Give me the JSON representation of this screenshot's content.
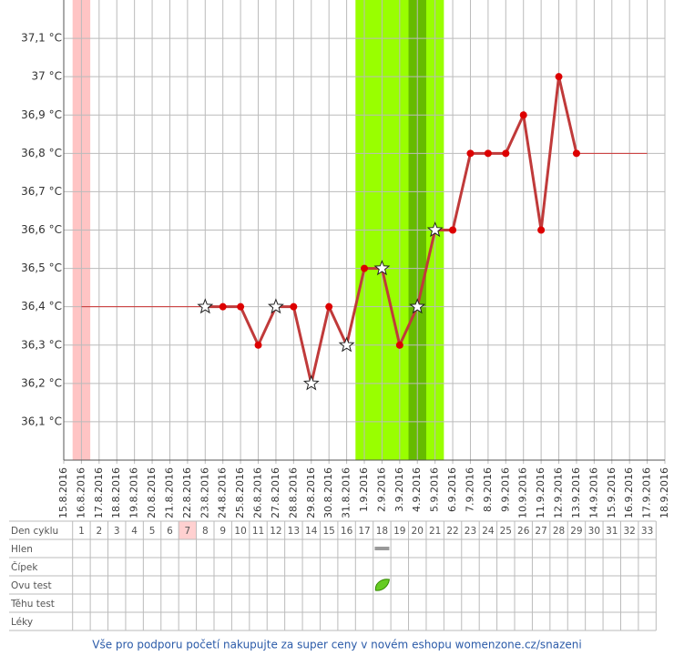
{
  "chart_data": {
    "type": "line",
    "x": [
      "15.8.2016",
      "16.8.2016",
      "17.8.2016",
      "18.8.2016",
      "19.8.2016",
      "20.8.2016",
      "21.8.2016",
      "22.8.2016",
      "23.8.2016",
      "24.8.2016",
      "25.8.2016",
      "26.8.2016",
      "27.8.2016",
      "28.8.2016",
      "29.8.2016",
      "30.8.2016",
      "31.8.2016",
      "1.9.2016",
      "2.9.2016",
      "3.9.2016",
      "4.9.2016",
      "5.9.2016",
      "6.9.2016",
      "7.9.2016",
      "8.9.2016",
      "9.9.2016",
      "10.9.2016",
      "11.9.2016",
      "12.9.2016",
      "13.9.2016",
      "14.9.2016",
      "15.9.2016",
      "16.9.2016",
      "17.9.2016",
      "18.9.2016"
    ],
    "values": [
      null,
      null,
      null,
      null,
      null,
      null,
      null,
      null,
      36.4,
      36.4,
      36.4,
      36.3,
      36.4,
      36.4,
      36.2,
      36.4,
      36.3,
      36.5,
      36.5,
      36.3,
      36.4,
      36.6,
      36.6,
      36.8,
      36.8,
      36.8,
      36.9,
      36.6,
      37.0,
      36.8,
      null,
      null,
      null,
      null,
      null
    ],
    "markers": [
      null,
      null,
      null,
      null,
      null,
      null,
      null,
      null,
      "star",
      "dot",
      "dot",
      "dot",
      "star",
      "dot",
      "star",
      "dot",
      "star",
      "dot",
      "star",
      "dot",
      "star",
      "star",
      "dot",
      "dot",
      "dot",
      "dot",
      "dot",
      "dot",
      "dot",
      "dot",
      null,
      null,
      null,
      null,
      null
    ],
    "color": "#c03a3a",
    "dot_color": "#dd0000",
    "ylim": [
      36.0,
      37.2
    ],
    "yticks": [
      {
        "value": 36.1,
        "label": "36,1 °C"
      },
      {
        "value": 36.2,
        "label": "36,2 °C"
      },
      {
        "value": 36.3,
        "label": "36,3 °C"
      },
      {
        "value": 36.4,
        "label": "36,4 °C"
      },
      {
        "value": 36.5,
        "label": "36,5 °C"
      },
      {
        "value": 36.6,
        "label": "36,6 °C"
      },
      {
        "value": 36.7,
        "label": "36,7 °C"
      },
      {
        "value": 36.8,
        "label": "36,8 °C"
      },
      {
        "value": 36.9,
        "label": "36,9 °C"
      },
      {
        "value": 37.0,
        "label": "37 °C"
      },
      {
        "value": 37.1,
        "label": "37,1 °C"
      }
    ],
    "grid": true,
    "bands": [
      {
        "from": "16.8.2016",
        "to": "16.8.2016",
        "color": "#ffc4c4"
      },
      {
        "from": "1.9.2016",
        "to": "5.9.2016",
        "color": "#99ff00"
      },
      {
        "from": "4.9.2016",
        "to": "4.9.2016",
        "color": "#66bb00"
      }
    ],
    "reference_lines": [
      {
        "value": 36.4,
        "from": "16.8.2016",
        "to": "23.8.2016",
        "color": "#cc3333"
      },
      {
        "value": 36.8,
        "from": "13.9.2016",
        "to": "17.9.2016",
        "color": "#cc3333"
      }
    ]
  },
  "cycle_table": {
    "header": "Den cyklu",
    "first_date": "16.8.2016",
    "days": [
      1,
      2,
      3,
      4,
      5,
      6,
      7,
      8,
      9,
      10,
      11,
      12,
      13,
      14,
      15,
      16,
      17,
      18,
      19,
      20,
      21,
      22,
      23,
      24,
      25,
      26,
      27,
      28,
      29,
      30,
      31,
      32,
      33
    ],
    "highlight_day": 7,
    "rows": [
      {
        "label": "Hlen",
        "marked_days": [
          18
        ]
      },
      {
        "label": "Čípek",
        "marked_days": []
      },
      {
        "label": "Ovu test",
        "marked_days": [
          18
        ]
      },
      {
        "label": "Těhu test",
        "marked_days": []
      },
      {
        "label": "Léky",
        "marked_days": []
      }
    ]
  },
  "footer": {
    "link": "Vše pro podporu početí nakupujte za super ceny v novém eshopu womenzone.cz/snazeni"
  }
}
